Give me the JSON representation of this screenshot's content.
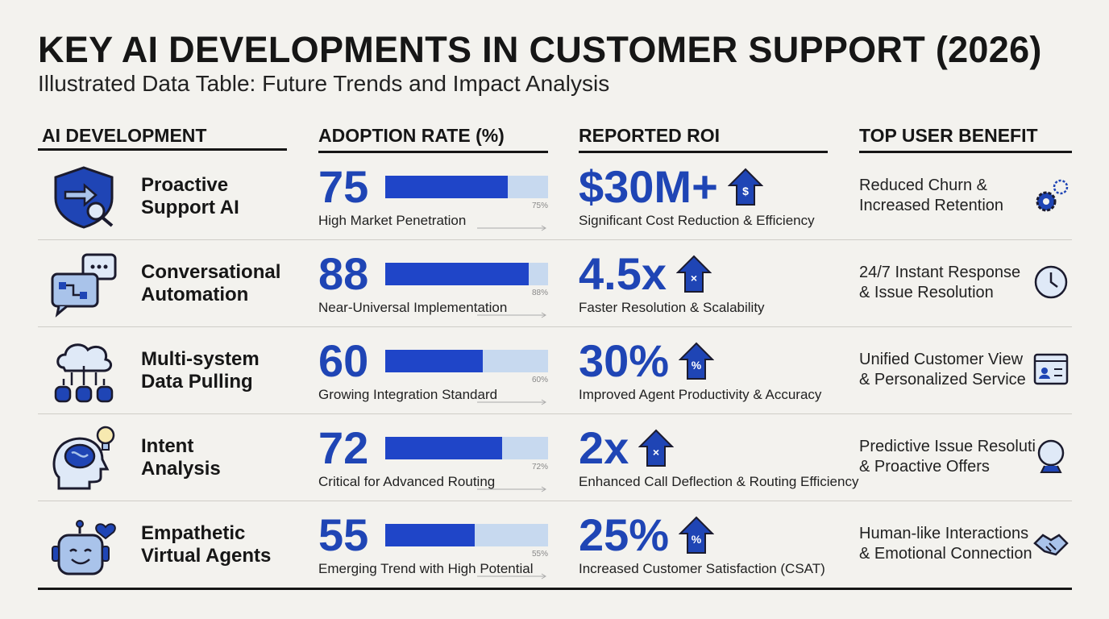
{
  "header": {
    "title": "KEY AI DEVELOPMENTS IN CUSTOMER SUPPORT (2026)",
    "subtitle": "Illustrated Data Table: Future Trends and Impact Analysis"
  },
  "table": {
    "columns": [
      "AI DEVELOPMENT",
      "ADOPTION RATE (%)",
      "REPORTED ROI",
      "TOP USER BENEFIT"
    ],
    "rows": [
      {
        "development": [
          "Proactive",
          "Support AI"
        ],
        "adoption": 75,
        "adoption_label": "75%",
        "adoption_note": "High Market Penetration",
        "roi": "$30M+",
        "roi_badge": "$",
        "roi_note": "Significant Cost Reduction & Efficiency",
        "benefit": [
          "Reduced Churn &",
          "Increased Retention"
        ]
      },
      {
        "development": [
          "Conversational",
          "Automation"
        ],
        "adoption": 88,
        "adoption_label": "88%",
        "adoption_note": "Near-Universal Implementation",
        "roi": "4.5x",
        "roi_badge": "×",
        "roi_note": "Faster Resolution & Scalability",
        "benefit": [
          "24/7 Instant Response",
          "& Issue Resolution"
        ]
      },
      {
        "development": [
          "Multi-system",
          "Data Pulling"
        ],
        "adoption": 60,
        "adoption_label": "60%",
        "adoption_note": "Growing Integration Standard",
        "roi": "30%",
        "roi_badge": "%",
        "roi_note": "Improved Agent Productivity & Accuracy",
        "benefit": [
          "Unified Customer View",
          "& Personalized Service"
        ]
      },
      {
        "development": [
          "Intent",
          "Analysis"
        ],
        "adoption": 72,
        "adoption_label": "72%",
        "adoption_note": "Critical for Advanced Routing",
        "roi": "2x",
        "roi_badge": "×",
        "roi_note": "Enhanced Call Deflection & Routing Efficiency",
        "benefit": [
          "Predictive Issue Resoluti",
          "& Proactive Offers"
        ]
      },
      {
        "development": [
          "Empathetic",
          "Virtual Agents"
        ],
        "adoption": 55,
        "adoption_label": "55%",
        "adoption_note": "Emerging Trend with High Potential",
        "roi": "25%",
        "roi_badge": "%",
        "roi_note": "Increased Customer Satisfaction (CSAT)",
        "benefit": [
          "Human-like Interactions",
          "& Emotional Connection"
        ]
      }
    ]
  }
}
